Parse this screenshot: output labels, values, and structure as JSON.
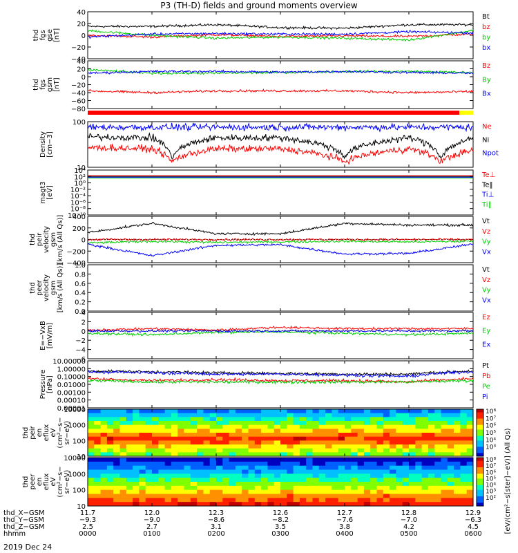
{
  "title": "P3 (TH-D) fields and ground moments overview",
  "date_label": "2019 Dec 24",
  "colors": {
    "black": "#000000",
    "red": "#ff0000",
    "green": "#00cc00",
    "blue": "#0000ff",
    "orbit_red": "#ff0000",
    "orbit_yellow": "#ffff00"
  },
  "chart_data": [
    {
      "type": "line",
      "ylabel": [
        "thd",
        "fgs",
        "gse",
        "[nT]"
      ],
      "yticks": [
        "40",
        "20",
        "0",
        "−20",
        "−40"
      ],
      "ylim": [
        -40,
        40
      ],
      "legend": [
        {
          "name": "Bt",
          "color": "black"
        },
        {
          "name": "bz",
          "color": "red"
        },
        {
          "name": "by",
          "color": "green"
        },
        {
          "name": "bx",
          "color": "blue"
        }
      ],
      "series": [
        {
          "name": "Bt",
          "color": "black",
          "x": [
            0,
            1,
            2,
            3,
            4,
            5,
            6
          ],
          "y": [
            15,
            15,
            18,
            13,
            12,
            18,
            18
          ]
        },
        {
          "name": "bz",
          "color": "red",
          "x": [
            0,
            1,
            2,
            3,
            4,
            5,
            6
          ],
          "y": [
            0,
            -3,
            1,
            -2,
            -1,
            -2,
            2
          ]
        },
        {
          "name": "by",
          "color": "green",
          "x": [
            0,
            1,
            2,
            3,
            4,
            5,
            6
          ],
          "y": [
            8,
            0,
            -5,
            -3,
            -5,
            -8,
            8
          ]
        },
        {
          "name": "bx",
          "color": "blue",
          "x": [
            0,
            1,
            2,
            3,
            4,
            5,
            6
          ],
          "y": [
            -3,
            2,
            3,
            2,
            2,
            6,
            4
          ]
        }
      ]
    },
    {
      "type": "line",
      "ylabel": [
        "thd",
        "fgs",
        "gsm",
        "[nT]"
      ],
      "yticks": [
        "40",
        "20",
        "0",
        "−20",
        "−40",
        "−60",
        "−80"
      ],
      "ylim": [
        -90,
        45
      ],
      "legend": [
        {
          "name": "Bz",
          "color": "red"
        },
        {
          "name": "By",
          "color": "green"
        },
        {
          "name": "Bx",
          "color": "blue"
        }
      ],
      "series": [
        {
          "name": "Bz",
          "color": "red",
          "x": [
            0,
            1,
            2,
            3,
            4,
            5,
            6
          ],
          "y": [
            -40,
            -45,
            -40,
            -40,
            -40,
            -45,
            -42
          ]
        },
        {
          "name": "By",
          "color": "green",
          "x": [
            0,
            1,
            2,
            3,
            4,
            5,
            6
          ],
          "y": [
            20,
            10,
            10,
            12,
            15,
            15,
            12
          ]
        },
        {
          "name": "Bx",
          "color": "blue",
          "x": [
            0,
            1,
            2,
            3,
            4,
            5,
            6
          ],
          "y": [
            10,
            15,
            15,
            13,
            15,
            12,
            10
          ]
        }
      ]
    },
    {
      "type": "line",
      "log": true,
      "ylabel": [
        "Density",
        "[cm−3]"
      ],
      "yticks": [
        "100",
        "10"
      ],
      "ylim": [
        1,
        300
      ],
      "legend": [
        {
          "name": "Ne",
          "color": "red"
        },
        {
          "name": "Ni",
          "color": "black"
        },
        {
          "name": "Npot",
          "color": "blue"
        }
      ],
      "series": [
        {
          "name": "Ni",
          "color": "black",
          "x": [
            0,
            1,
            1.3,
            2,
            3,
            4,
            5,
            5.5,
            6
          ],
          "y": [
            45,
            40,
            3,
            40,
            40,
            4,
            40,
            3,
            35
          ]
        },
        {
          "name": "Ne",
          "color": "red",
          "x": [
            0,
            1,
            1.3,
            2,
            3,
            4,
            5,
            5.5,
            6
          ],
          "y": [
            12,
            10,
            2,
            10,
            10,
            2,
            10,
            2,
            8
          ]
        },
        {
          "name": "Npot",
          "color": "blue",
          "x": [
            0,
            1,
            1.3,
            2,
            3,
            4,
            5,
            5.5,
            6
          ],
          "y": [
            150,
            150,
            150,
            150,
            150,
            150,
            150,
            150,
            150
          ]
        }
      ]
    },
    {
      "type": "line",
      "log": true,
      "ylabel": [
        "magt3",
        "[eV]"
      ],
      "yticks": [
        "10⁴",
        "10²",
        "10⁰",
        "10⁻²",
        "10⁻⁴",
        "10⁻⁶",
        "10⁻⁸",
        "10⁻¹⁰"
      ],
      "legend": [
        {
          "name": "Te⊥",
          "color": "red"
        },
        {
          "name": "Te‖",
          "color": "black"
        },
        {
          "name": "Ti⊥",
          "color": "blue"
        },
        {
          "name": "Ti‖",
          "color": "green"
        }
      ],
      "series": []
    },
    {
      "type": "line",
      "ylabel": [
        "thd",
        "peir",
        "velocity",
        "gsm",
        "[km/s (All Qs)]"
      ],
      "yticks": [
        "400",
        "200",
        "0",
        "−200",
        "−400"
      ],
      "ylim": [
        -400,
        400
      ],
      "legend": [
        {
          "name": "Vt",
          "color": "black"
        },
        {
          "name": "Vz",
          "color": "red"
        },
        {
          "name": "Vy",
          "color": "green"
        },
        {
          "name": "Vx",
          "color": "blue"
        }
      ],
      "series": [
        {
          "name": "Vt",
          "color": "black",
          "x": [
            0,
            1,
            2,
            3,
            4,
            5,
            6
          ],
          "y": [
            120,
            280,
            100,
            100,
            280,
            250,
            250
          ]
        },
        {
          "name": "Vz",
          "color": "red",
          "x": [
            0,
            1,
            2,
            3,
            4,
            5,
            6
          ],
          "y": [
            0,
            0,
            0,
            0,
            0,
            0,
            0
          ]
        },
        {
          "name": "Vy",
          "color": "green",
          "x": [
            0,
            1,
            2,
            3,
            4,
            5,
            6
          ],
          "y": [
            -60,
            -30,
            -50,
            -40,
            -30,
            -40,
            -30
          ]
        },
        {
          "name": "Vx",
          "color": "blue",
          "x": [
            0,
            1,
            2,
            3,
            4,
            5,
            6
          ],
          "y": [
            -80,
            -280,
            -100,
            -90,
            -250,
            -240,
            -80
          ]
        }
      ]
    },
    {
      "type": "line",
      "ylabel": [
        "thd",
        "peer",
        "velocity",
        "gsm",
        "[km/s (All Qs)]"
      ],
      "yticks": [
        "1.0",
        "0.8",
        "0.6",
        "0.4",
        "0.2",
        "0.0"
      ],
      "ylim": [
        0,
        1
      ],
      "legend": [
        {
          "name": "Vt",
          "color": "black"
        },
        {
          "name": "Vz",
          "color": "red"
        },
        {
          "name": "Vy",
          "color": "green"
        },
        {
          "name": "Vx",
          "color": "blue"
        }
      ],
      "series": []
    },
    {
      "type": "line",
      "ylabel": [
        "E=−VxB",
        "[mV/m]"
      ],
      "yticks": [
        "4",
        "2",
        "0",
        "−2",
        "−4",
        "−6"
      ],
      "ylim": [
        -6,
        4
      ],
      "legend": [
        {
          "name": "Ez",
          "color": "red"
        },
        {
          "name": "Ey",
          "color": "green"
        },
        {
          "name": "Ex",
          "color": "blue"
        }
      ],
      "series": [
        {
          "name": "Ez",
          "color": "red",
          "x": [
            0,
            1,
            2,
            3,
            4,
            5,
            6
          ],
          "y": [
            0.2,
            0.5,
            0.2,
            0.8,
            0.5,
            0.5,
            0.5
          ]
        },
        {
          "name": "Ey",
          "color": "green",
          "x": [
            0,
            1,
            2,
            3,
            4,
            5,
            6
          ],
          "y": [
            -0.5,
            -0.8,
            -0.3,
            -0.2,
            -0.5,
            -0.8,
            -0.5
          ]
        },
        {
          "name": "Ex",
          "color": "blue",
          "x": [
            0,
            1,
            2,
            3,
            4,
            5,
            6
          ],
          "y": [
            0,
            0,
            0,
            0,
            0,
            0,
            0
          ]
        }
      ]
    },
    {
      "type": "line",
      "log": true,
      "ylabel": [
        "Pressure",
        "[nPa]"
      ],
      "yticks": [
        "10.00000",
        "1.00000",
        "0.10000",
        "0.01000",
        "0.00100",
        "0.00010",
        "0.00001"
      ],
      "ylim": [
        1e-05,
        10
      ],
      "legend": [
        {
          "name": "Pt",
          "color": "black"
        },
        {
          "name": "Pb",
          "color": "red"
        },
        {
          "name": "Pe",
          "color": "green"
        },
        {
          "name": "Pi",
          "color": "blue"
        }
      ],
      "series": [
        {
          "name": "Pt",
          "color": "black",
          "x": [
            0,
            1,
            2,
            3,
            4,
            5,
            6
          ],
          "y": [
            0.5,
            0.4,
            0.3,
            0.25,
            0.2,
            0.2,
            0.5
          ]
        },
        {
          "name": "Pb",
          "color": "red",
          "x": [
            0,
            1,
            2,
            3,
            4,
            5,
            6
          ],
          "y": [
            0.05,
            0.03,
            0.04,
            0.03,
            0.03,
            0.02,
            0.05
          ]
        },
        {
          "name": "Pe",
          "color": "green",
          "x": [
            0,
            1,
            2,
            3,
            4,
            5,
            6
          ],
          "y": [
            0.03,
            0.02,
            0.02,
            0.02,
            0.02,
            0.02,
            0.03
          ]
        },
        {
          "name": "Pi",
          "color": "blue",
          "x": [
            0,
            1,
            2,
            3,
            4,
            5,
            6
          ],
          "y": [
            0.4,
            0.3,
            0.2,
            0.2,
            0.15,
            0.1,
            0.4
          ]
        }
      ]
    },
    {
      "type": "heatmap",
      "ylabel": [
        "thd",
        "peir",
        "en",
        "eflux",
        "eV",
        "(cm²−s−",
        "sr−eV)"
      ],
      "yticks": [
        "10000",
        "1000",
        "100",
        "10"
      ],
      "colorbar_label": "[eV/(cm²−s[ster]−eV)] (All Qs)",
      "colorbar_ticks": [
        "10⁸",
        "10⁷",
        "10⁶",
        "10⁵",
        "10⁴",
        "10³"
      ]
    },
    {
      "type": "heatmap",
      "ylabel": [
        "thd",
        "peer",
        "en",
        "eflux",
        "eV",
        "(cm²−s−",
        "sr−eV)"
      ],
      "yticks": [
        "10000",
        "1000",
        "100",
        "10"
      ],
      "colorbar_label": "[eV/(cm²−s[ster]−eV)] (All Qs)",
      "colorbar_ticks": [
        "10⁸",
        "10⁷",
        "10⁶",
        "10⁵",
        "10⁴",
        "10³",
        "10²"
      ]
    }
  ],
  "xaxis": {
    "row_labels": [
      "thd_X−GSM",
      "thd_Y−GSM",
      "thd_Z−GSM",
      "hhmm"
    ],
    "columns": [
      [
        "11.7",
        "−9.3",
        "2.5",
        "0000"
      ],
      [
        "12.0",
        "−9.0",
        "2.7",
        "0100"
      ],
      [
        "12.3",
        "−8.6",
        "3.1",
        "0200"
      ],
      [
        "12.6",
        "−8.2",
        "3.5",
        "0300"
      ],
      [
        "12.7",
        "−7.6",
        "3.8",
        "0400"
      ],
      [
        "12.8",
        "−7.0",
        "4.2",
        "0500"
      ],
      [
        "12.9",
        "−6.3",
        "4.5",
        "0600"
      ]
    ]
  }
}
